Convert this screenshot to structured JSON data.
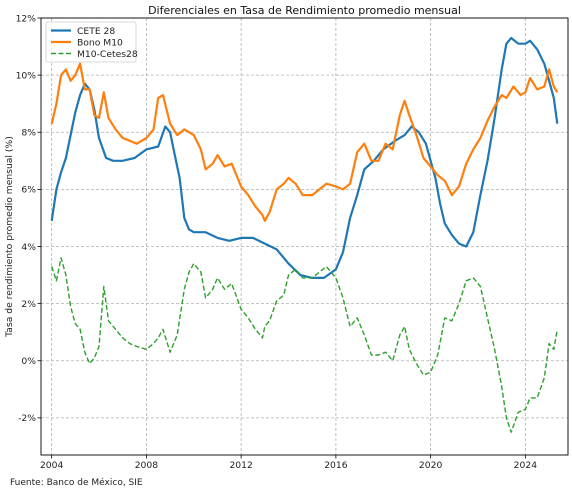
{
  "chart_data": {
    "type": "line",
    "title": "Diferenciales en Tasa de Rendimiento promedio mensual",
    "xlabel": "",
    "ylabel": "Tasa de rendimiento promedio mensual (%)",
    "xlim": [
      2003.55,
      2025.8
    ],
    "ylim": [
      -3.3,
      12
    ],
    "x_ticks": [
      2004,
      2008,
      2012,
      2016,
      2020,
      2024
    ],
    "y_ticks": [
      -2,
      0,
      2,
      4,
      6,
      8,
      10,
      12
    ],
    "y_tick_labels": [
      "-2%",
      "0%",
      "2%",
      "4%",
      "6%",
      "8%",
      "10%",
      "12%"
    ],
    "grid": true,
    "legend_position": "top-left",
    "colors": {
      "cete": "#1f77b4",
      "bono": "#ff7f0e",
      "diff": "#2ca02c"
    },
    "series": [
      {
        "name": "CETE 28",
        "style": "solid",
        "points": [
          [
            2004.0,
            4.9
          ],
          [
            2004.2,
            6.0
          ],
          [
            2004.4,
            6.6
          ],
          [
            2004.6,
            7.1
          ],
          [
            2004.8,
            7.9
          ],
          [
            2005.0,
            8.7
          ],
          [
            2005.2,
            9.3
          ],
          [
            2005.4,
            9.7
          ],
          [
            2005.6,
            9.5
          ],
          [
            2005.8,
            8.8
          ],
          [
            2006.0,
            7.8
          ],
          [
            2006.3,
            7.1
          ],
          [
            2006.6,
            7.0
          ],
          [
            2007.0,
            7.0
          ],
          [
            2007.5,
            7.1
          ],
          [
            2008.0,
            7.4
          ],
          [
            2008.5,
            7.5
          ],
          [
            2008.8,
            8.2
          ],
          [
            2009.0,
            8.0
          ],
          [
            2009.2,
            7.2
          ],
          [
            2009.4,
            6.4
          ],
          [
            2009.6,
            5.0
          ],
          [
            2009.8,
            4.6
          ],
          [
            2010.0,
            4.5
          ],
          [
            2010.5,
            4.5
          ],
          [
            2011.0,
            4.3
          ],
          [
            2011.5,
            4.2
          ],
          [
            2012.0,
            4.3
          ],
          [
            2012.5,
            4.3
          ],
          [
            2013.0,
            4.1
          ],
          [
            2013.5,
            3.9
          ],
          [
            2014.0,
            3.4
          ],
          [
            2014.5,
            3.0
          ],
          [
            2015.0,
            2.9
          ],
          [
            2015.5,
            2.9
          ],
          [
            2016.0,
            3.2
          ],
          [
            2016.3,
            3.8
          ],
          [
            2016.6,
            5.0
          ],
          [
            2016.9,
            5.8
          ],
          [
            2017.2,
            6.7
          ],
          [
            2017.6,
            7.0
          ],
          [
            2018.0,
            7.4
          ],
          [
            2018.5,
            7.7
          ],
          [
            2018.9,
            7.9
          ],
          [
            2019.2,
            8.2
          ],
          [
            2019.5,
            8.0
          ],
          [
            2019.8,
            7.6
          ],
          [
            2020.0,
            7.0
          ],
          [
            2020.2,
            6.4
          ],
          [
            2020.4,
            5.5
          ],
          [
            2020.6,
            4.8
          ],
          [
            2020.9,
            4.4
          ],
          [
            2021.2,
            4.1
          ],
          [
            2021.5,
            4.0
          ],
          [
            2021.8,
            4.5
          ],
          [
            2022.1,
            5.8
          ],
          [
            2022.4,
            7.0
          ],
          [
            2022.7,
            8.5
          ],
          [
            2023.0,
            10.2
          ],
          [
            2023.2,
            11.1
          ],
          [
            2023.4,
            11.3
          ],
          [
            2023.7,
            11.1
          ],
          [
            2024.0,
            11.1
          ],
          [
            2024.2,
            11.2
          ],
          [
            2024.5,
            10.9
          ],
          [
            2024.8,
            10.4
          ],
          [
            2025.0,
            9.8
          ],
          [
            2025.2,
            9.2
          ],
          [
            2025.35,
            8.3
          ]
        ]
      },
      {
        "name": "Bono M10",
        "style": "solid",
        "points": [
          [
            2004.0,
            8.3
          ],
          [
            2004.2,
            9.0
          ],
          [
            2004.4,
            10.0
          ],
          [
            2004.6,
            10.2
          ],
          [
            2004.8,
            9.8
          ],
          [
            2005.0,
            10.0
          ],
          [
            2005.2,
            10.4
          ],
          [
            2005.4,
            9.5
          ],
          [
            2005.6,
            9.5
          ],
          [
            2005.8,
            8.6
          ],
          [
            2006.0,
            8.5
          ],
          [
            2006.2,
            9.4
          ],
          [
            2006.4,
            8.5
          ],
          [
            2006.7,
            8.1
          ],
          [
            2007.0,
            7.8
          ],
          [
            2007.3,
            7.7
          ],
          [
            2007.6,
            7.6
          ],
          [
            2008.0,
            7.8
          ],
          [
            2008.3,
            8.1
          ],
          [
            2008.5,
            9.2
          ],
          [
            2008.7,
            9.3
          ],
          [
            2009.0,
            8.3
          ],
          [
            2009.3,
            7.9
          ],
          [
            2009.6,
            8.1
          ],
          [
            2010.0,
            7.9
          ],
          [
            2010.3,
            7.4
          ],
          [
            2010.5,
            6.7
          ],
          [
            2010.8,
            6.9
          ],
          [
            2011.0,
            7.2
          ],
          [
            2011.3,
            6.8
          ],
          [
            2011.6,
            6.9
          ],
          [
            2012.0,
            6.1
          ],
          [
            2012.3,
            5.8
          ],
          [
            2012.6,
            5.4
          ],
          [
            2012.9,
            5.1
          ],
          [
            2013.0,
            4.9
          ],
          [
            2013.2,
            5.2
          ],
          [
            2013.5,
            6.0
          ],
          [
            2013.8,
            6.2
          ],
          [
            2014.0,
            6.4
          ],
          [
            2014.3,
            6.2
          ],
          [
            2014.6,
            5.8
          ],
          [
            2015.0,
            5.8
          ],
          [
            2015.3,
            6.0
          ],
          [
            2015.6,
            6.2
          ],
          [
            2016.0,
            6.1
          ],
          [
            2016.3,
            6.0
          ],
          [
            2016.6,
            6.2
          ],
          [
            2016.9,
            7.3
          ],
          [
            2017.2,
            7.6
          ],
          [
            2017.5,
            7.0
          ],
          [
            2017.8,
            7.0
          ],
          [
            2018.1,
            7.6
          ],
          [
            2018.4,
            7.4
          ],
          [
            2018.7,
            8.6
          ],
          [
            2018.9,
            9.1
          ],
          [
            2019.1,
            8.6
          ],
          [
            2019.4,
            7.9
          ],
          [
            2019.7,
            7.1
          ],
          [
            2020.0,
            6.8
          ],
          [
            2020.3,
            6.5
          ],
          [
            2020.6,
            6.3
          ],
          [
            2020.9,
            5.8
          ],
          [
            2021.2,
            6.1
          ],
          [
            2021.5,
            6.9
          ],
          [
            2021.8,
            7.4
          ],
          [
            2022.1,
            7.8
          ],
          [
            2022.4,
            8.4
          ],
          [
            2022.7,
            8.9
          ],
          [
            2023.0,
            9.3
          ],
          [
            2023.2,
            9.2
          ],
          [
            2023.5,
            9.6
          ],
          [
            2023.8,
            9.3
          ],
          [
            2024.0,
            9.4
          ],
          [
            2024.2,
            9.9
          ],
          [
            2024.5,
            9.5
          ],
          [
            2024.8,
            9.6
          ],
          [
            2025.0,
            10.2
          ],
          [
            2025.2,
            9.6
          ],
          [
            2025.35,
            9.4
          ]
        ]
      },
      {
        "name": "M10-Cetes28",
        "style": "dashed",
        "points": [
          [
            2004.0,
            3.3
          ],
          [
            2004.2,
            2.8
          ],
          [
            2004.4,
            3.6
          ],
          [
            2004.6,
            3.0
          ],
          [
            2004.8,
            1.9
          ],
          [
            2005.0,
            1.3
          ],
          [
            2005.2,
            1.1
          ],
          [
            2005.4,
            0.3
          ],
          [
            2005.6,
            -0.1
          ],
          [
            2005.8,
            0.1
          ],
          [
            2006.0,
            0.5
          ],
          [
            2006.2,
            2.6
          ],
          [
            2006.4,
            1.4
          ],
          [
            2006.7,
            1.1
          ],
          [
            2007.0,
            0.8
          ],
          [
            2007.3,
            0.6
          ],
          [
            2007.6,
            0.5
          ],
          [
            2008.0,
            0.4
          ],
          [
            2008.3,
            0.6
          ],
          [
            2008.5,
            0.8
          ],
          [
            2008.7,
            1.1
          ],
          [
            2009.0,
            0.3
          ],
          [
            2009.3,
            0.9
          ],
          [
            2009.6,
            2.5
          ],
          [
            2009.8,
            3.1
          ],
          [
            2010.0,
            3.4
          ],
          [
            2010.3,
            3.1
          ],
          [
            2010.5,
            2.2
          ],
          [
            2010.8,
            2.5
          ],
          [
            2011.0,
            2.9
          ],
          [
            2011.3,
            2.5
          ],
          [
            2011.6,
            2.7
          ],
          [
            2012.0,
            1.8
          ],
          [
            2012.3,
            1.5
          ],
          [
            2012.6,
            1.1
          ],
          [
            2012.9,
            0.8
          ],
          [
            2013.0,
            1.2
          ],
          [
            2013.2,
            1.4
          ],
          [
            2013.5,
            2.1
          ],
          [
            2013.8,
            2.3
          ],
          [
            2014.0,
            3.0
          ],
          [
            2014.3,
            3.2
          ],
          [
            2014.6,
            2.9
          ],
          [
            2015.0,
            2.9
          ],
          [
            2015.3,
            3.1
          ],
          [
            2015.6,
            3.3
          ],
          [
            2016.0,
            2.9
          ],
          [
            2016.3,
            2.2
          ],
          [
            2016.6,
            1.2
          ],
          [
            2016.9,
            1.5
          ],
          [
            2017.2,
            0.9
          ],
          [
            2017.5,
            0.2
          ],
          [
            2017.8,
            0.2
          ],
          [
            2018.1,
            0.3
          ],
          [
            2018.4,
            0.0
          ],
          [
            2018.7,
            0.9
          ],
          [
            2018.9,
            1.2
          ],
          [
            2019.1,
            0.4
          ],
          [
            2019.4,
            -0.1
          ],
          [
            2019.7,
            -0.5
          ],
          [
            2020.0,
            -0.4
          ],
          [
            2020.3,
            0.2
          ],
          [
            2020.6,
            1.5
          ],
          [
            2020.9,
            1.4
          ],
          [
            2021.2,
            2.0
          ],
          [
            2021.5,
            2.8
          ],
          [
            2021.8,
            2.9
          ],
          [
            2022.1,
            2.6
          ],
          [
            2022.4,
            1.5
          ],
          [
            2022.7,
            0.4
          ],
          [
            2023.0,
            -0.9
          ],
          [
            2023.2,
            -2.0
          ],
          [
            2023.4,
            -2.5
          ],
          [
            2023.7,
            -1.8
          ],
          [
            2024.0,
            -1.7
          ],
          [
            2024.2,
            -1.3
          ],
          [
            2024.5,
            -1.3
          ],
          [
            2024.8,
            -0.6
          ],
          [
            2025.0,
            0.6
          ],
          [
            2025.2,
            0.4
          ],
          [
            2025.35,
            1.1
          ]
        ]
      }
    ]
  },
  "footer": "Fuente: Banco de México, SIE"
}
